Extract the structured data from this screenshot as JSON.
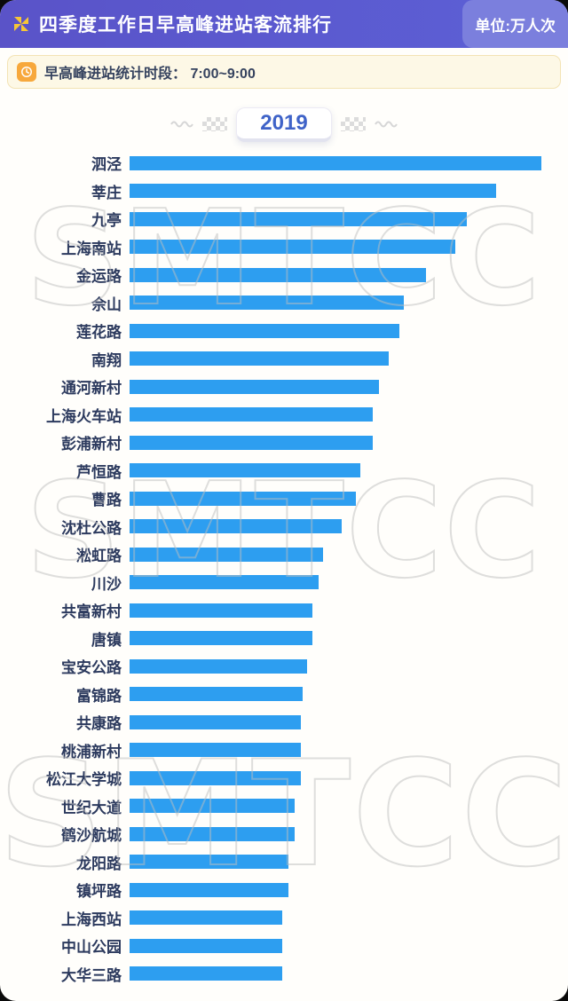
{
  "header": {
    "title": "四季度工作日早高峰进站客流排行",
    "unit_label": "单位:万人次"
  },
  "notice": {
    "text": "早高峰进站统计时段： 7:00~9:00"
  },
  "year_tab": {
    "label": "2019"
  },
  "watermark": "SMTCC",
  "chart_data": {
    "type": "bar",
    "orientation": "horizontal",
    "title": "四季度工作日早高峰进站客流排行",
    "subtitle": "2019",
    "unit": "万人次",
    "value_note": "bars carry no numeric labels; values are relative bar lengths as % of the longest bar (泗泾 = 100)",
    "xlim": [
      0,
      100
    ],
    "grid": false,
    "legend": false,
    "bar_color": "#2d9ef0",
    "categories": [
      "泗泾",
      "莘庄",
      "九亭",
      "上海南站",
      "金运路",
      "佘山",
      "莲花路",
      "南翔",
      "通河新村",
      "上海火车站",
      "彭浦新村",
      "芦恒路",
      "曹路",
      "沈杜公路",
      "淞虹路",
      "川沙",
      "共富新村",
      "唐镇",
      "宝安公路",
      "富锦路",
      "共康路",
      "桃浦新村",
      "松江大学城",
      "世纪大道",
      "鹤沙航城",
      "龙阳路",
      "镇坪路",
      "上海西站",
      "中山公园",
      "大华三路"
    ],
    "values": [
      100,
      89,
      82,
      79,
      72,
      66.5,
      65.5,
      63,
      60.5,
      59,
      59,
      56,
      55,
      51.5,
      47,
      46,
      44.5,
      44.5,
      43,
      42,
      41.5,
      41.5,
      41.5,
      40,
      40,
      38.5,
      38.5,
      37,
      37,
      37
    ]
  }
}
